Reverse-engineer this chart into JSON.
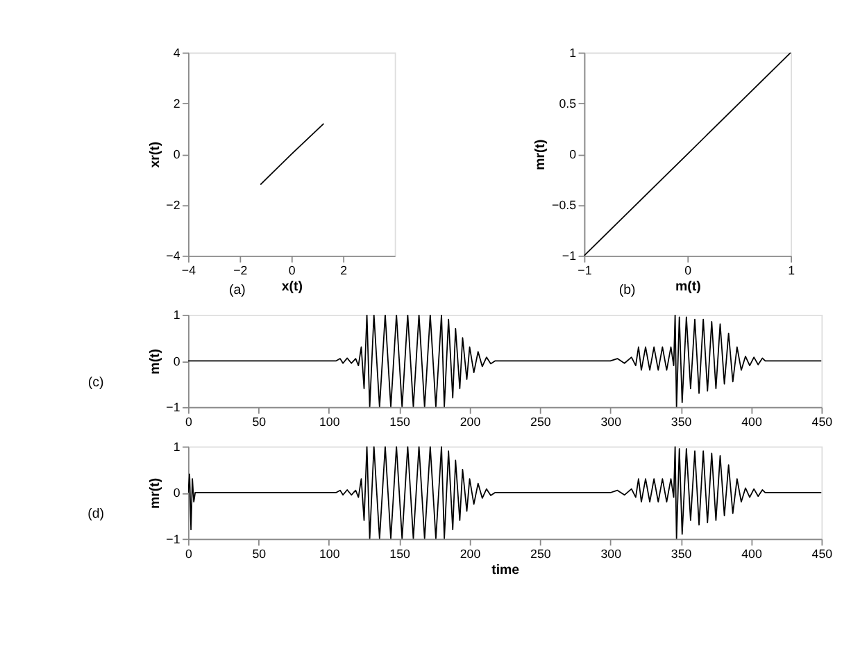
{
  "chart_data": [
    {
      "type": "line",
      "xlabel": "x(t)",
      "ylabel": "xr(t)",
      "xlim": [
        -4,
        4
      ],
      "xticks": [
        -4,
        -2,
        0,
        2
      ],
      "ylim": [
        -4,
        4
      ],
      "yticks": [
        -4,
        -2,
        0,
        2,
        4
      ],
      "annotations": [
        "(a)"
      ],
      "series": [
        {
          "color": "#000000",
          "x": [
            -1.2,
            0,
            1.25
          ],
          "values": [
            -1.2,
            0,
            1.2
          ]
        }
      ]
    },
    {
      "type": "line",
      "xlabel": "m(t)",
      "ylabel": "mr(t)",
      "xlim": [
        -1,
        1
      ],
      "xticks": [
        -1,
        0,
        1
      ],
      "ylim": [
        -1,
        1
      ],
      "yticks": [
        -1,
        -0.5,
        0,
        0.5,
        1
      ],
      "annotations": [
        "(b)"
      ],
      "series": [
        {
          "color": "#000000",
          "x": [
            -1,
            0,
            1
          ],
          "values": [
            -1,
            0,
            1
          ]
        }
      ]
    },
    {
      "type": "line",
      "ylabel": "m(t)",
      "xlim": [
        0,
        450
      ],
      "xticks": [
        0,
        50,
        100,
        150,
        200,
        250,
        300,
        350,
        400,
        450
      ],
      "ylim": [
        -1,
        1
      ],
      "yticks": [
        -1,
        0,
        1
      ],
      "annotations": [
        "(c)"
      ],
      "series": [
        {
          "color": "#000000",
          "x": [
            0,
            105,
            108,
            110,
            113,
            116,
            119,
            121,
            123,
            125,
            127,
            129,
            132,
            136,
            140,
            144,
            148,
            152,
            156,
            160,
            164,
            168,
            172,
            176,
            180,
            182,
            185,
            188,
            190,
            193,
            195,
            198,
            200,
            203,
            206,
            209,
            212,
            215,
            218,
            300,
            305,
            310,
            315,
            318,
            320,
            322,
            325,
            328,
            331,
            334,
            337,
            340,
            343,
            345,
            346,
            347,
            349,
            351,
            354,
            357,
            360,
            363,
            366,
            369,
            372,
            375,
            378,
            381,
            384,
            387,
            390,
            393,
            396,
            399,
            402,
            405,
            408,
            410,
            450
          ],
          "values": [
            0,
            0,
            0.05,
            -0.05,
            0.06,
            -0.05,
            0.05,
            -0.1,
            0.3,
            -0.6,
            1,
            -1,
            1,
            -1,
            1,
            -1,
            1,
            -1,
            1,
            -1,
            1,
            -1,
            1,
            -1,
            1,
            -1,
            0.9,
            -0.8,
            0.7,
            -0.6,
            0.5,
            -0.4,
            0.3,
            -0.25,
            0.2,
            -0.12,
            0.08,
            -0.06,
            0,
            0,
            0.05,
            -0.05,
            0.08,
            -0.1,
            0.3,
            -0.2,
            0.3,
            -0.2,
            0.3,
            -0.2,
            0.3,
            -0.2,
            0.3,
            -0.1,
            1,
            -1,
            0.95,
            -0.9,
            0.95,
            -0.6,
            0.9,
            -0.7,
            0.9,
            -0.65,
            0.85,
            -0.6,
            0.8,
            -0.5,
            0.6,
            -0.45,
            0.3,
            -0.2,
            0.1,
            -0.1,
            0.08,
            -0.08,
            0.06,
            0,
            0
          ]
        }
      ]
    },
    {
      "type": "line",
      "xlabel": "time",
      "ylabel": "mr(t)",
      "xlim": [
        0,
        450
      ],
      "xticks": [
        0,
        50,
        100,
        150,
        200,
        250,
        300,
        350,
        400,
        450
      ],
      "ylim": [
        -1,
        1
      ],
      "yticks": [
        -1,
        0,
        1
      ],
      "annotations": [
        "(d)"
      ],
      "series": [
        {
          "color": "#000000",
          "x": [
            0,
            1,
            2,
            3,
            4,
            5,
            105,
            108,
            110,
            113,
            116,
            119,
            121,
            123,
            125,
            127,
            129,
            132,
            136,
            140,
            144,
            148,
            152,
            156,
            160,
            164,
            168,
            172,
            176,
            180,
            182,
            185,
            188,
            190,
            193,
            195,
            198,
            200,
            203,
            206,
            209,
            212,
            215,
            218,
            300,
            305,
            310,
            315,
            318,
            320,
            322,
            325,
            328,
            331,
            334,
            337,
            340,
            343,
            345,
            346,
            347,
            349,
            351,
            354,
            357,
            360,
            363,
            366,
            369,
            372,
            375,
            378,
            381,
            384,
            387,
            390,
            393,
            396,
            399,
            402,
            405,
            408,
            410,
            450
          ],
          "values": [
            0,
            0.4,
            -0.8,
            0.3,
            -0.2,
            0,
            0,
            0.05,
            -0.05,
            0.06,
            -0.05,
            0.05,
            -0.1,
            0.3,
            -0.6,
            1,
            -1,
            1,
            -1,
            1,
            -1,
            1,
            -1,
            1,
            -1,
            1,
            -1,
            1,
            -1,
            1,
            -1,
            0.9,
            -0.8,
            0.7,
            -0.6,
            0.5,
            -0.4,
            0.3,
            -0.25,
            0.2,
            -0.12,
            0.08,
            -0.06,
            0,
            0,
            0.05,
            -0.05,
            0.08,
            -0.1,
            0.3,
            -0.2,
            0.3,
            -0.2,
            0.3,
            -0.2,
            0.3,
            -0.2,
            0.3,
            -0.1,
            1,
            -1,
            0.95,
            -0.9,
            0.95,
            -0.6,
            0.9,
            -0.7,
            0.9,
            -0.65,
            0.85,
            -0.6,
            0.8,
            -0.5,
            0.6,
            -0.45,
            0.3,
            -0.2,
            0.1,
            -0.1,
            0.08,
            -0.08,
            0.06,
            0,
            0
          ]
        }
      ]
    }
  ]
}
